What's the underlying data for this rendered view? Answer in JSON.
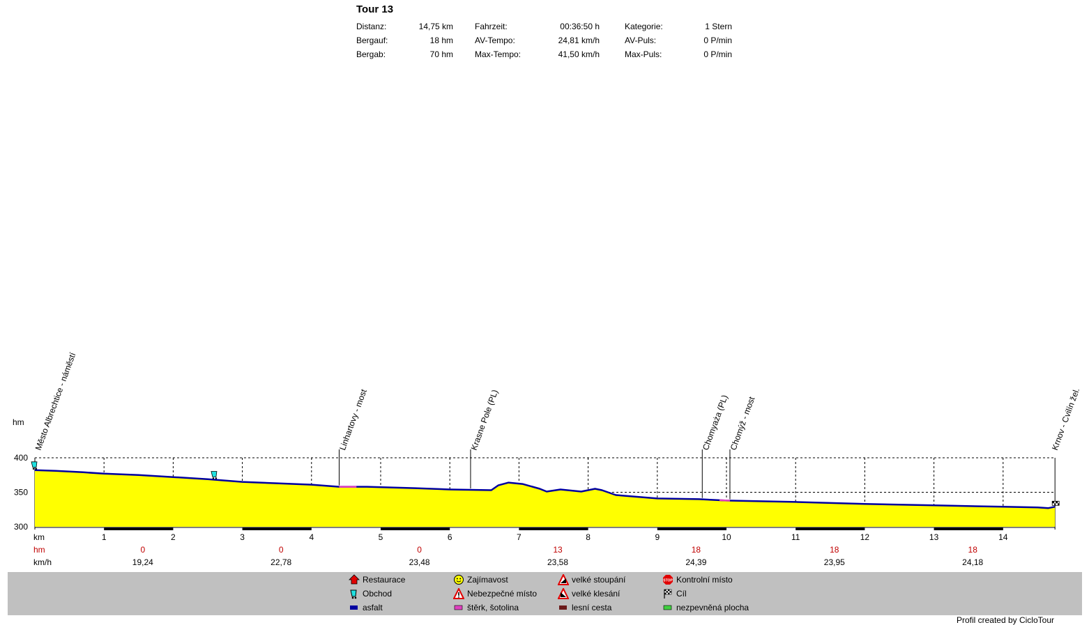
{
  "title": "Tour 13",
  "stats": [
    [
      {
        "label": "Distanz:",
        "value": "14,75 km"
      },
      {
        "label": "Bergauf:",
        "value": "18 hm"
      },
      {
        "label": "Bergab:",
        "value": "70 hm"
      }
    ],
    [
      {
        "label": "Fahrzeit:",
        "value": "00:36:50 h"
      },
      {
        "label": "AV-Tempo:",
        "value": "24,81 km/h"
      },
      {
        "label": "Max-Tempo:",
        "value": "41,50 km/h"
      }
    ],
    [
      {
        "label": "Kategorie:",
        "value": "1 Stern"
      },
      {
        "label": "AV-Puls:",
        "value": "0 P/min"
      },
      {
        "label": "Max-Puls:",
        "value": "0 P/min"
      }
    ]
  ],
  "chart_data": {
    "type": "area",
    "ylabel": "hm",
    "ylim": [
      300,
      400
    ],
    "yticks": [
      "300",
      "350",
      "400"
    ],
    "xlim": [
      0,
      14.75
    ],
    "xticks": [
      "km",
      "1",
      "2",
      "3",
      "4",
      "5",
      "6",
      "7",
      "8",
      "9",
      "10",
      "11",
      "12",
      "13",
      "14"
    ],
    "colors": {
      "fill": "#ffff00",
      "line": "#0000a0",
      "gravel": "#e040c0"
    },
    "profile": [
      [
        0,
        382
      ],
      [
        0.3,
        381
      ],
      [
        0.7,
        379
      ],
      [
        1.0,
        377
      ],
      [
        1.5,
        375
      ],
      [
        2.0,
        372
      ],
      [
        2.5,
        369
      ],
      [
        3.0,
        365
      ],
      [
        3.5,
        363
      ],
      [
        4.0,
        361
      ],
      [
        4.4,
        358
      ],
      [
        4.8,
        358
      ],
      [
        5.5,
        356
      ],
      [
        6.0,
        354
      ],
      [
        6.6,
        353
      ],
      [
        6.7,
        360
      ],
      [
        6.85,
        364
      ],
      [
        7.05,
        362
      ],
      [
        7.3,
        355
      ],
      [
        7.4,
        351
      ],
      [
        7.6,
        354
      ],
      [
        7.9,
        351
      ],
      [
        8.1,
        355
      ],
      [
        8.2,
        353
      ],
      [
        8.4,
        346
      ],
      [
        9.0,
        341
      ],
      [
        9.6,
        340
      ],
      [
        10.0,
        338
      ],
      [
        10.5,
        337
      ],
      [
        11.0,
        336
      ],
      [
        12.0,
        333
      ],
      [
        13.0,
        331
      ],
      [
        14.0,
        329
      ],
      [
        14.5,
        328
      ],
      [
        14.65,
        327
      ],
      [
        14.75,
        329
      ]
    ],
    "gravel_segments": [
      [
        4.4,
        4.65
      ],
      [
        9.9,
        10.05
      ]
    ],
    "waypoints": [
      {
        "km": 0.0,
        "label": "Město Albrechtice - náměstí"
      },
      {
        "km": 4.4,
        "label": "Linhartovy - most"
      },
      {
        "km": 6.3,
        "label": "Krasne Pole (PL)"
      },
      {
        "km": 9.65,
        "label": "Chomyaża (PL)"
      },
      {
        "km": 10.05,
        "label": "Chomýž - most"
      },
      {
        "km": 14.7,
        "label": "Krnov - Cvilín žel."
      }
    ],
    "hm_row_label": "hm",
    "kmh_row_label": "km/h",
    "segments": [
      {
        "center": 1.5,
        "hm": "0",
        "kmh": "19,24"
      },
      {
        "center": 3.5,
        "hm": "0",
        "kmh": "22,78"
      },
      {
        "center": 5.5,
        "hm": "0",
        "kmh": "23,48"
      },
      {
        "center": 7.5,
        "hm": "13",
        "kmh": "23,58"
      },
      {
        "center": 9.5,
        "hm": "18",
        "kmh": "24,39"
      },
      {
        "center": 11.5,
        "hm": "18",
        "kmh": "23,95"
      },
      {
        "center": 13.5,
        "hm": "18",
        "kmh": "24,18"
      }
    ],
    "map_icons": [
      {
        "km": 0.0,
        "icon": "obchod-icon"
      },
      {
        "km": 2.6,
        "icon": "obchod-icon"
      },
      {
        "km": 14.75,
        "icon": "finish-flag-icon"
      }
    ]
  },
  "legend": [
    {
      "label": "Restaurace",
      "icon": "restaurant-icon"
    },
    {
      "label": "Obchod",
      "icon": "shop-icon"
    },
    {
      "label": "asfalt",
      "icon": "asphalt-swatch",
      "color": "#0000a0"
    },
    {
      "label": "Zajímavost",
      "icon": "smiley-icon"
    },
    {
      "label": "Nebezpečné místo",
      "icon": "danger-icon"
    },
    {
      "label": "štěrk, šotolina",
      "icon": "gravel-swatch",
      "color": "#e040c0"
    },
    {
      "label": "velké stoupání",
      "icon": "climb-icon"
    },
    {
      "label": "velké klesání",
      "icon": "descent-icon"
    },
    {
      "label": "lesní cesta",
      "icon": "forest-path-swatch",
      "color": "#6b1a1a"
    },
    {
      "label": "Kontrolní místo",
      "icon": "stop-icon"
    },
    {
      "label": "Cíl",
      "icon": "finish-flag-icon"
    },
    {
      "label": "nezpevněná plocha",
      "icon": "unpaved-swatch",
      "color": "#40d040"
    }
  ],
  "credit": "Profil created by CicloTour"
}
